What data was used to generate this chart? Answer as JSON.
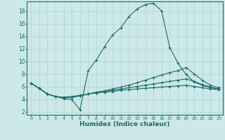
{
  "xlabel": "Humidex (Indice chaleur)",
  "background_color": "#cce8e8",
  "grid_color": "#b0d4d4",
  "line_color": "#1a6b6b",
  "xlim": [
    -0.5,
    23.5
  ],
  "ylim": [
    1.5,
    19.5
  ],
  "xticks": [
    0,
    1,
    2,
    3,
    4,
    5,
    6,
    7,
    8,
    9,
    10,
    11,
    12,
    13,
    14,
    15,
    16,
    17,
    18,
    19,
    20,
    21,
    22,
    23
  ],
  "yticks": [
    2,
    4,
    6,
    8,
    10,
    12,
    14,
    16,
    18
  ],
  "line1_x": [
    0,
    1,
    2,
    3,
    4,
    5,
    6,
    7,
    8,
    9,
    10,
    11,
    12,
    13,
    14,
    15,
    16,
    17,
    18,
    19,
    20,
    21,
    22,
    23
  ],
  "line1_y": [
    6.5,
    5.7,
    4.8,
    4.4,
    4.1,
    3.9,
    2.3,
    8.5,
    10.2,
    12.3,
    14.2,
    15.3,
    17.1,
    18.3,
    19.0,
    19.2,
    18.0,
    12.2,
    9.7,
    7.9,
    6.7,
    6.2,
    5.8,
    5.6
  ],
  "line2_x": [
    0,
    1,
    2,
    3,
    4,
    5,
    6,
    7,
    8,
    9,
    10,
    11,
    12,
    13,
    14,
    15,
    16,
    17,
    18,
    19,
    20,
    21,
    22,
    23
  ],
  "line2_y": [
    6.5,
    5.7,
    4.8,
    4.4,
    4.2,
    4.3,
    4.5,
    4.8,
    5.1,
    5.3,
    5.6,
    5.9,
    6.2,
    6.6,
    7.0,
    7.4,
    7.8,
    8.2,
    8.5,
    9.0,
    8.0,
    7.0,
    6.2,
    5.8
  ],
  "line3_x": [
    0,
    1,
    2,
    3,
    4,
    5,
    6,
    7,
    8,
    9,
    10,
    11,
    12,
    13,
    14,
    15,
    16,
    17,
    18,
    19,
    20,
    21,
    22,
    23
  ],
  "line3_y": [
    6.5,
    5.7,
    4.8,
    4.4,
    4.2,
    4.3,
    4.5,
    4.8,
    5.0,
    5.2,
    5.4,
    5.6,
    5.8,
    6.0,
    6.2,
    6.4,
    6.6,
    6.8,
    7.0,
    7.2,
    6.8,
    6.3,
    5.9,
    5.6
  ],
  "line4_x": [
    0,
    1,
    2,
    3,
    4,
    5,
    6,
    7,
    8,
    9,
    10,
    11,
    12,
    13,
    14,
    15,
    16,
    17,
    18,
    19,
    20,
    21,
    22,
    23
  ],
  "line4_y": [
    6.5,
    5.7,
    4.8,
    4.4,
    4.3,
    4.4,
    4.6,
    4.8,
    5.0,
    5.1,
    5.2,
    5.4,
    5.5,
    5.6,
    5.7,
    5.8,
    5.9,
    6.0,
    6.1,
    6.2,
    6.0,
    5.8,
    5.6,
    5.5
  ]
}
